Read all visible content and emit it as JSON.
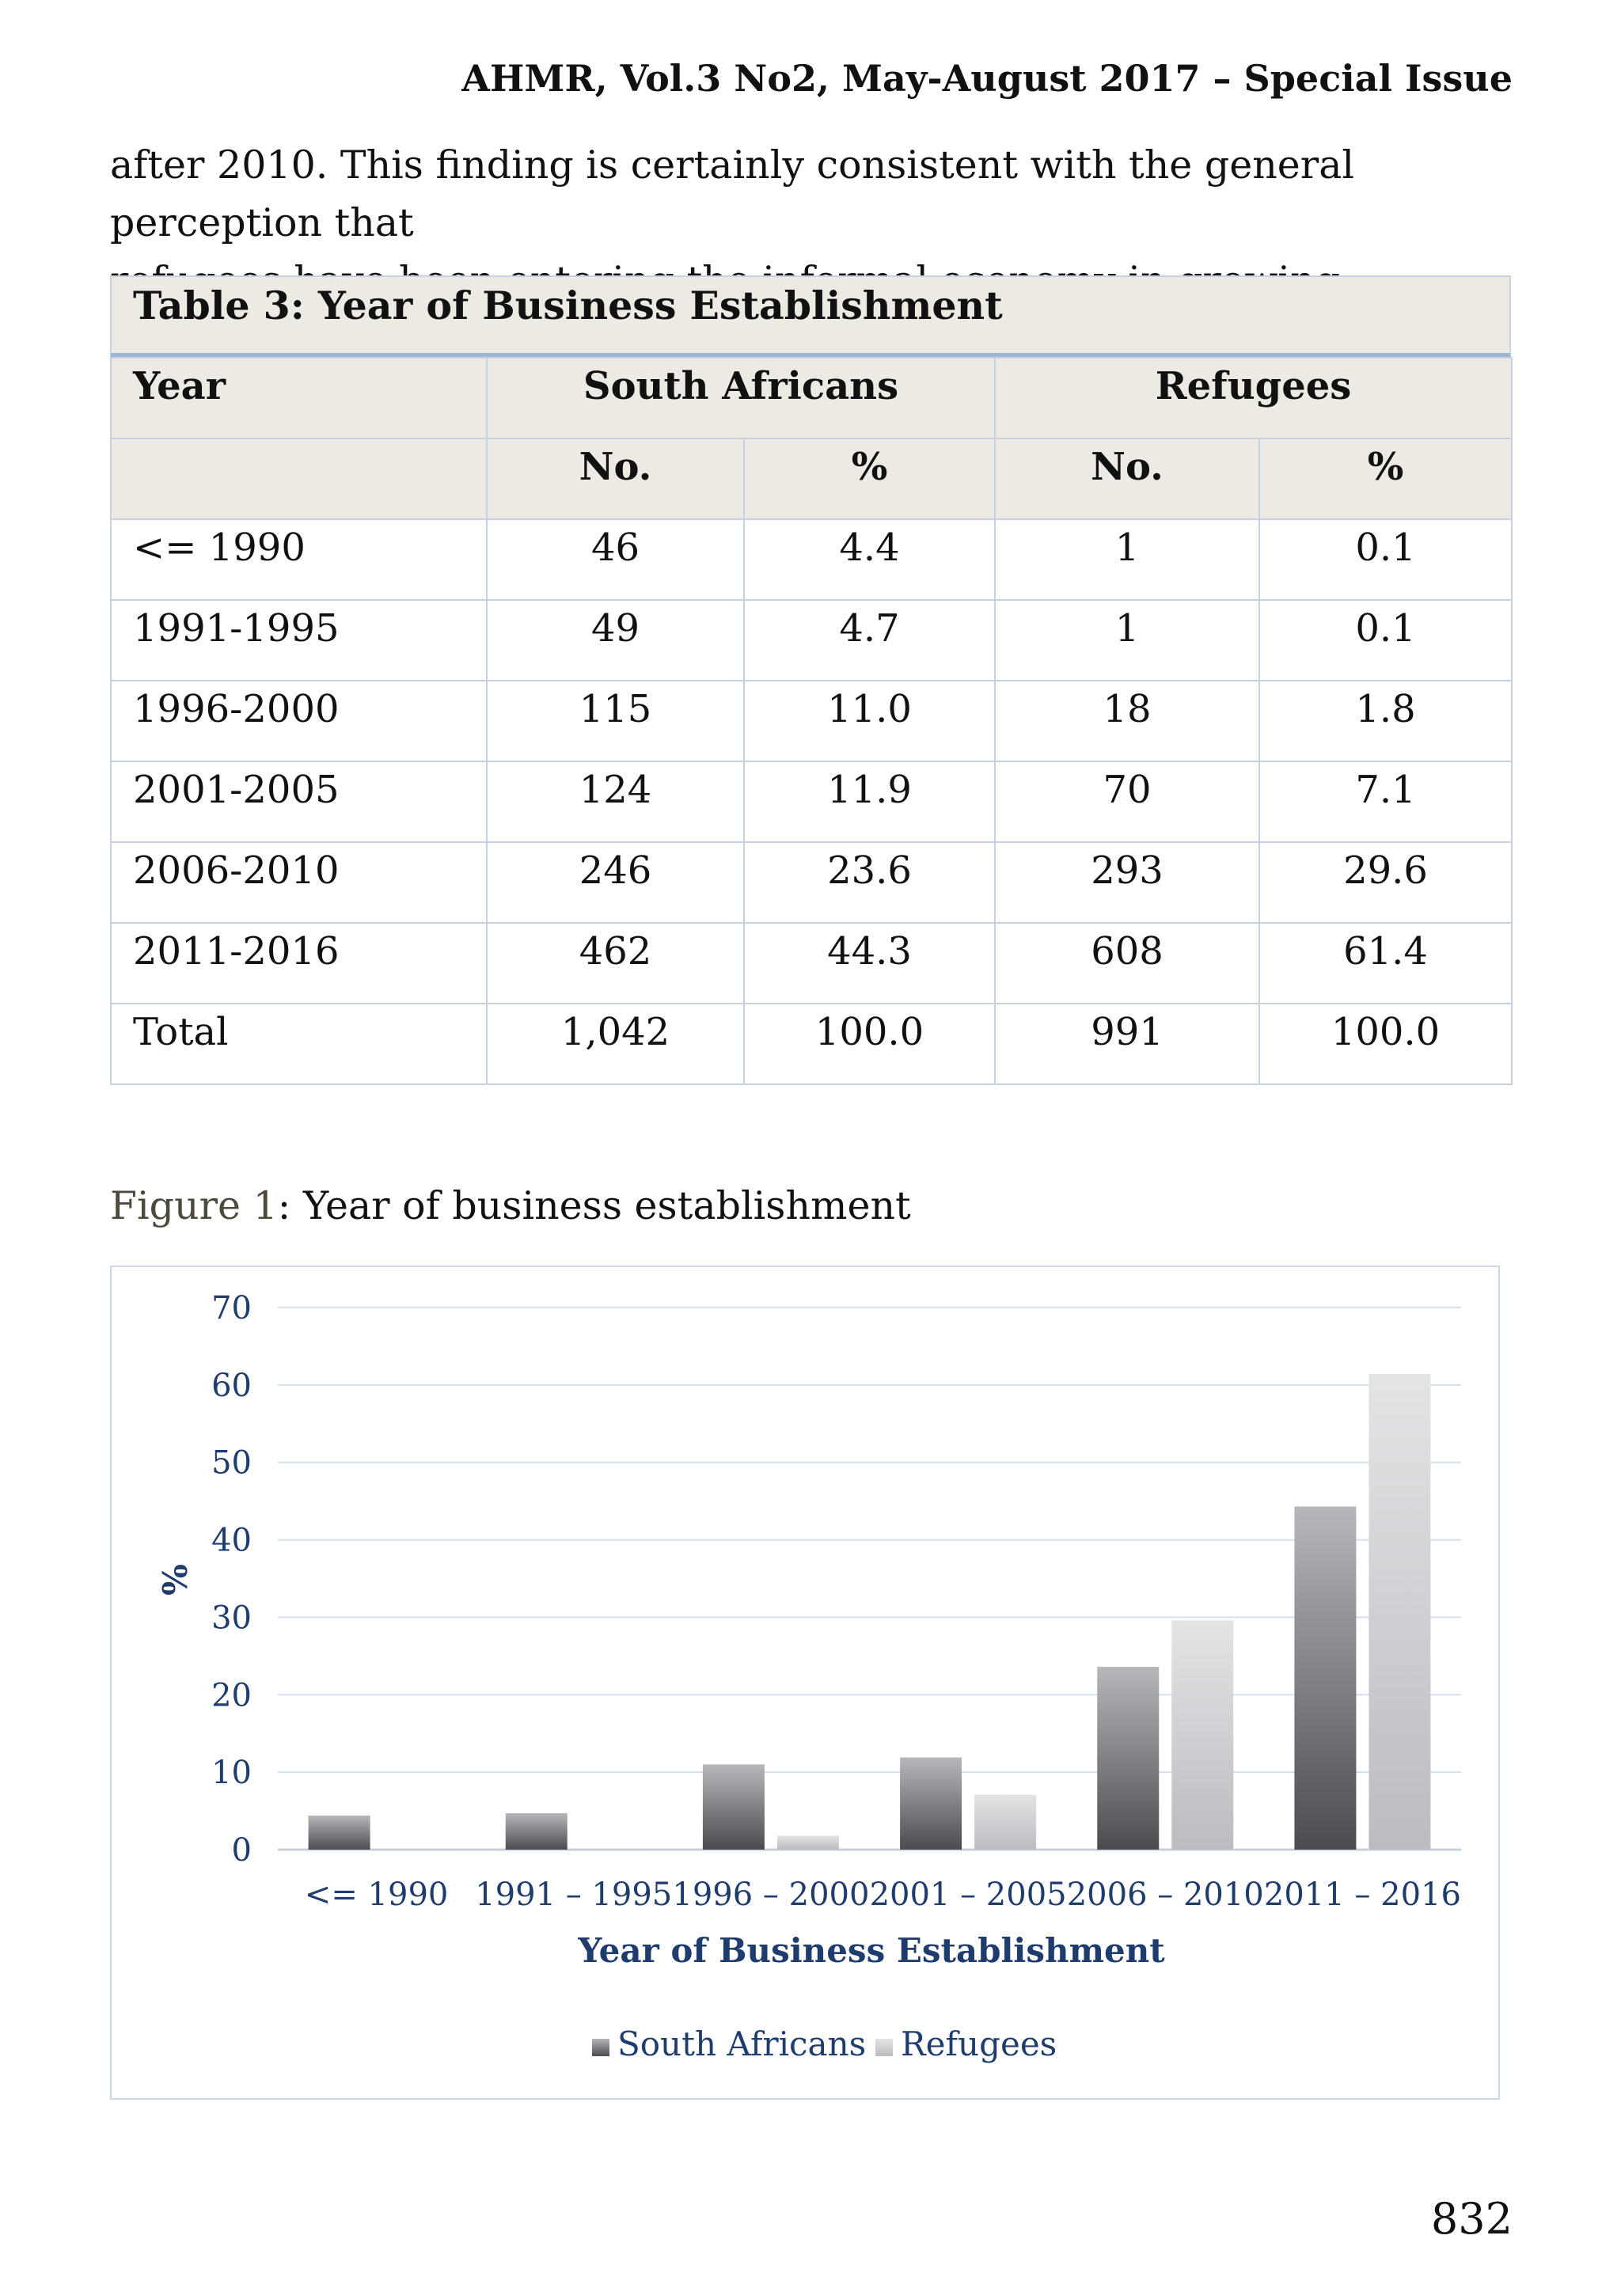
{
  "header": "AHMR, Vol.3 No2, May-August 2017 – Special Issue",
  "intro": {
    "line1": "after 2010. This finding is certainly consistent with the general perception that",
    "line2": "refugees have been entering the informal economy in growing numbers."
  },
  "table": {
    "caption": "Table 3: Year of Business Establishment",
    "col_year": "Year",
    "group_sa": "South Africans",
    "group_ref": "Refugees",
    "sub_no": "No.",
    "sub_pct": "%",
    "rows": [
      {
        "year": "<= 1990",
        "sa_no": "46",
        "sa_pct": "4.4",
        "ref_no": "1",
        "ref_pct": "0.1"
      },
      {
        "year": "1991-1995",
        "sa_no": "49",
        "sa_pct": "4.7",
        "ref_no": "1",
        "ref_pct": "0.1"
      },
      {
        "year": "1996-2000",
        "sa_no": "115",
        "sa_pct": "11.0",
        "ref_no": "18",
        "ref_pct": "1.8"
      },
      {
        "year": "2001-2005",
        "sa_no": "124",
        "sa_pct": "11.9",
        "ref_no": "70",
        "ref_pct": "7.1"
      },
      {
        "year": "2006-2010",
        "sa_no": "246",
        "sa_pct": "23.6",
        "ref_no": "293",
        "ref_pct": "29.6"
      },
      {
        "year": "2011-2016",
        "sa_no": "462",
        "sa_pct": "44.3",
        "ref_no": "608",
        "ref_pct": "61.4"
      },
      {
        "year": "Total",
        "sa_no": "1,042",
        "sa_pct": "100.0",
        "ref_no": "991",
        "ref_pct": "100.0"
      }
    ]
  },
  "figure": {
    "label_num": "Figure 1",
    "label_text": ": Year of business establishment"
  },
  "chart_data": {
    "type": "bar",
    "categories": [
      "<= 1990",
      "1991 – 1995",
      "1996 – 2000",
      "2001 – 2005",
      "2006 – 2010",
      "2011 – 2016"
    ],
    "series": [
      {
        "name": "South Africans",
        "values": [
          4.4,
          4.7,
          11.0,
          11.9,
          23.6,
          44.3
        ]
      },
      {
        "name": "Refugees",
        "values": [
          0.1,
          0.1,
          1.8,
          7.1,
          29.6,
          61.4
        ]
      }
    ],
    "xlabel": "Year of Business Establishment",
    "ylabel": "%",
    "ylim": [
      0,
      70
    ],
    "yticks": [
      0,
      10,
      20,
      30,
      40,
      50,
      60,
      70
    ],
    "grid": true,
    "legend": "bottom",
    "colors": {
      "South Africans": "#5e5c60",
      "Refugees": "#cfced3"
    }
  },
  "page_number": "832"
}
